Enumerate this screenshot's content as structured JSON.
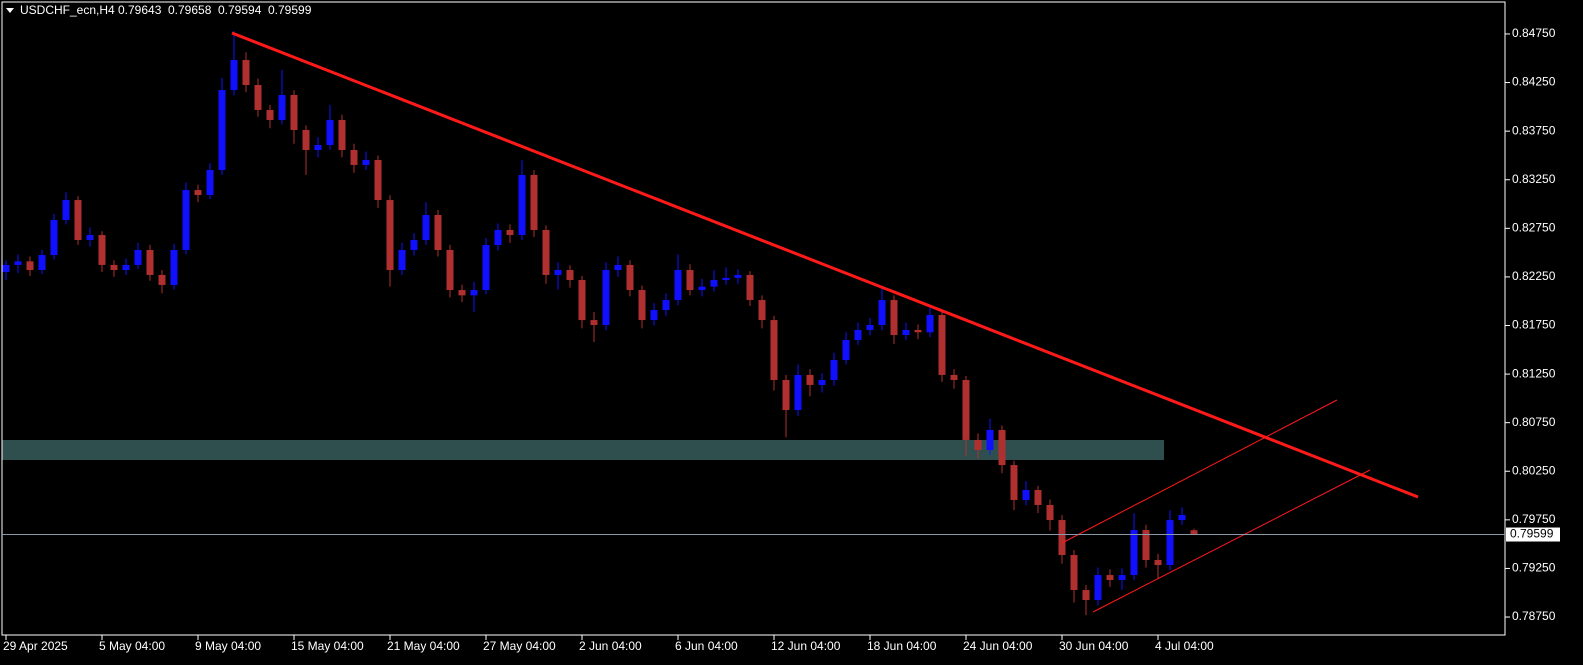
{
  "chart_data": {
    "type": "candlestick",
    "symbol": "USDCHF_ecn,H4",
    "up_color": "#1010ff",
    "down_color": "#b03030",
    "ylim": [
      0.78565,
      0.85079
    ],
    "yticks": [
      {
        "value": 0.7875,
        "label": "0.78750"
      },
      {
        "value": 0.7925,
        "label": "0.79250"
      },
      {
        "value": 0.7975,
        "label": "0.79750"
      },
      {
        "value": 0.8025,
        "label": "0.80250"
      },
      {
        "value": 0.8075,
        "label": "0.80750"
      },
      {
        "value": 0.8125,
        "label": "0.81250"
      },
      {
        "value": 0.8175,
        "label": "0.81750"
      },
      {
        "value": 0.8225,
        "label": "0.82250"
      },
      {
        "value": 0.8275,
        "label": "0.82750"
      },
      {
        "value": 0.8325,
        "label": "0.83250"
      },
      {
        "value": 0.8375,
        "label": "0.83750"
      },
      {
        "value": 0.8425,
        "label": "0.84250"
      },
      {
        "value": 0.8475,
        "label": "0.84750"
      }
    ],
    "categories": [
      "29 Apr 2025",
      null,
      null,
      null,
      null,
      null,
      null,
      null,
      "5 May 04:00",
      null,
      null,
      null,
      null,
      null,
      null,
      null,
      "9 May 04:00",
      null,
      null,
      null,
      null,
      null,
      null,
      null,
      "15 May 04:00",
      null,
      null,
      null,
      null,
      null,
      null,
      null,
      "21 May 04:00",
      null,
      null,
      null,
      null,
      null,
      null,
      null,
      "27 May 04:00",
      null,
      null,
      null,
      null,
      null,
      null,
      null,
      "2 Jun 04:00",
      null,
      null,
      null,
      null,
      null,
      null,
      null,
      "6 Jun 04:00",
      null,
      null,
      null,
      null,
      null,
      null,
      null,
      "12 Jun 04:00",
      null,
      null,
      null,
      null,
      null,
      null,
      null,
      "18 Jun 04:00",
      null,
      null,
      null,
      null,
      null,
      null,
      null,
      "24 Jun 04:00",
      null,
      null,
      null,
      null,
      null,
      null,
      null,
      "30 Jun 04:00",
      null,
      null,
      null,
      null,
      null,
      null,
      null,
      "4 Jul 04:00",
      null,
      null,
      null
    ],
    "ohlc": [
      [
        0.823,
        0.8242,
        0.8222,
        0.82373
      ],
      [
        0.82373,
        0.8248,
        0.8229,
        0.8241
      ],
      [
        0.8241,
        0.8246,
        0.8226,
        0.82321
      ],
      [
        0.82321,
        0.8253,
        0.8228,
        0.82475
      ],
      [
        0.82475,
        0.829,
        0.8243,
        0.82836
      ],
      [
        0.82836,
        0.8312,
        0.8279,
        0.83041
      ],
      [
        0.83041,
        0.8308,
        0.8258,
        0.8263
      ],
      [
        0.8263,
        0.8276,
        0.8256,
        0.82681
      ],
      [
        0.82681,
        0.8272,
        0.823,
        0.82373
      ],
      [
        0.82373,
        0.8242,
        0.8225,
        0.82321
      ],
      [
        0.82321,
        0.8244,
        0.8227,
        0.82373
      ],
      [
        0.82373,
        0.826,
        0.8233,
        0.82527
      ],
      [
        0.82527,
        0.8258,
        0.8221,
        0.8227
      ],
      [
        0.8227,
        0.8232,
        0.8208,
        0.82167
      ],
      [
        0.82167,
        0.8259,
        0.8212,
        0.82527
      ],
      [
        0.82527,
        0.8322,
        0.8248,
        0.83144
      ],
      [
        0.83144,
        0.832,
        0.8302,
        0.83093
      ],
      [
        0.83093,
        0.8342,
        0.8305,
        0.8335
      ],
      [
        0.8335,
        0.843,
        0.833,
        0.84173
      ],
      [
        0.84173,
        0.8478,
        0.8412,
        0.84482
      ],
      [
        0.84482,
        0.8456,
        0.8415,
        0.84225
      ],
      [
        0.84225,
        0.8429,
        0.839,
        0.83968
      ],
      [
        0.83968,
        0.8402,
        0.8378,
        0.83865
      ],
      [
        0.83865,
        0.8438,
        0.8382,
        0.84122
      ],
      [
        0.84122,
        0.8417,
        0.8362,
        0.83762
      ],
      [
        0.83762,
        0.8381,
        0.833,
        0.83556
      ],
      [
        0.83556,
        0.8369,
        0.8348,
        0.83607
      ],
      [
        0.83607,
        0.8402,
        0.8356,
        0.83865
      ],
      [
        0.83865,
        0.8392,
        0.8348,
        0.83556
      ],
      [
        0.83556,
        0.8362,
        0.8332,
        0.83402
      ],
      [
        0.83402,
        0.8354,
        0.8335,
        0.83453
      ],
      [
        0.83453,
        0.835,
        0.8296,
        0.83041
      ],
      [
        0.83041,
        0.8309,
        0.8215,
        0.82321
      ],
      [
        0.82321,
        0.826,
        0.8227,
        0.82527
      ],
      [
        0.82527,
        0.827,
        0.8247,
        0.8263
      ],
      [
        0.8263,
        0.8302,
        0.8258,
        0.82887
      ],
      [
        0.82887,
        0.8294,
        0.8246,
        0.82527
      ],
      [
        0.82527,
        0.8258,
        0.8204,
        0.82115
      ],
      [
        0.82115,
        0.8217,
        0.8199,
        0.8206
      ],
      [
        0.8206,
        0.822,
        0.8189,
        0.82115
      ],
      [
        0.82115,
        0.8265,
        0.8207,
        0.82578
      ],
      [
        0.82578,
        0.828,
        0.8252,
        0.82733
      ],
      [
        0.82733,
        0.8279,
        0.826,
        0.82681
      ],
      [
        0.82681,
        0.8345,
        0.8263,
        0.83299
      ],
      [
        0.83299,
        0.8335,
        0.8266,
        0.82733
      ],
      [
        0.82733,
        0.8278,
        0.8218,
        0.8227
      ],
      [
        0.8227,
        0.824,
        0.8212,
        0.82321
      ],
      [
        0.82321,
        0.8237,
        0.8214,
        0.82218
      ],
      [
        0.82218,
        0.8226,
        0.8172,
        0.81806
      ],
      [
        0.81806,
        0.8189,
        0.8158,
        0.81755
      ],
      [
        0.81755,
        0.824,
        0.817,
        0.82321
      ],
      [
        0.82321,
        0.8246,
        0.8225,
        0.82373
      ],
      [
        0.82373,
        0.8242,
        0.8205,
        0.82115
      ],
      [
        0.82115,
        0.8216,
        0.8172,
        0.81806
      ],
      [
        0.81806,
        0.8198,
        0.8175,
        0.81909
      ],
      [
        0.81909,
        0.8208,
        0.8185,
        0.82012
      ],
      [
        0.82012,
        0.8248,
        0.8196,
        0.82321
      ],
      [
        0.82321,
        0.8238,
        0.8206,
        0.82115
      ],
      [
        0.82115,
        0.8223,
        0.8205,
        0.8215
      ],
      [
        0.8215,
        0.8232,
        0.821,
        0.82218
      ],
      [
        0.82218,
        0.8235,
        0.8217,
        0.8224
      ],
      [
        0.8224,
        0.8233,
        0.8218,
        0.8227
      ],
      [
        0.8227,
        0.8231,
        0.8195,
        0.82012
      ],
      [
        0.82012,
        0.8206,
        0.8172,
        0.81806
      ],
      [
        0.81806,
        0.8185,
        0.8108,
        0.81189
      ],
      [
        0.81189,
        0.8124,
        0.806,
        0.8088
      ],
      [
        0.8088,
        0.8135,
        0.8082,
        0.81241
      ],
      [
        0.81241,
        0.813,
        0.8102,
        0.81138
      ],
      [
        0.81138,
        0.8126,
        0.8106,
        0.81189
      ],
      [
        0.81189,
        0.8147,
        0.8113,
        0.81395
      ],
      [
        0.81395,
        0.8168,
        0.8135,
        0.81601
      ],
      [
        0.81601,
        0.8178,
        0.8155,
        0.81704
      ],
      [
        0.81704,
        0.8183,
        0.8165,
        0.81755
      ],
      [
        0.81755,
        0.8213,
        0.817,
        0.82012
      ],
      [
        0.82012,
        0.8206,
        0.8156,
        0.81652
      ],
      [
        0.81652,
        0.8178,
        0.816,
        0.81704
      ],
      [
        0.81704,
        0.8176,
        0.8161,
        0.8168
      ],
      [
        0.8168,
        0.8196,
        0.8163,
        0.81858
      ],
      [
        0.81858,
        0.819,
        0.8117,
        0.81241
      ],
      [
        0.81241,
        0.813,
        0.811,
        0.81189
      ],
      [
        0.81189,
        0.8123,
        0.804,
        0.80572
      ],
      [
        0.80572,
        0.8064,
        0.8038,
        0.80469
      ],
      [
        0.80469,
        0.8079,
        0.8042,
        0.80675
      ],
      [
        0.80675,
        0.8072,
        0.8023,
        0.80314
      ],
      [
        0.80314,
        0.8036,
        0.7985,
        0.79954
      ],
      [
        0.79954,
        0.8015,
        0.799,
        0.80057
      ],
      [
        0.80057,
        0.801,
        0.7982,
        0.79903
      ],
      [
        0.79903,
        0.7996,
        0.7964,
        0.79748
      ],
      [
        0.79748,
        0.798,
        0.793,
        0.79388
      ],
      [
        0.79388,
        0.7944,
        0.789,
        0.79028
      ],
      [
        0.79028,
        0.7908,
        0.7877,
        0.78925
      ],
      [
        0.78925,
        0.7926,
        0.7887,
        0.79182
      ],
      [
        0.79182,
        0.7924,
        0.7906,
        0.79131
      ],
      [
        0.79131,
        0.7925,
        0.7903,
        0.79182
      ],
      [
        0.79182,
        0.7982,
        0.7913,
        0.79645
      ],
      [
        0.79645,
        0.797,
        0.7926,
        0.79337
      ],
      [
        0.79337,
        0.794,
        0.7914,
        0.79285
      ],
      [
        0.79285,
        0.7985,
        0.7923,
        0.79748
      ],
      [
        0.79748,
        0.7988,
        0.797,
        0.798
      ],
      [
        0.79643,
        0.79658,
        0.79594,
        0.79599
      ]
    ]
  }
}
